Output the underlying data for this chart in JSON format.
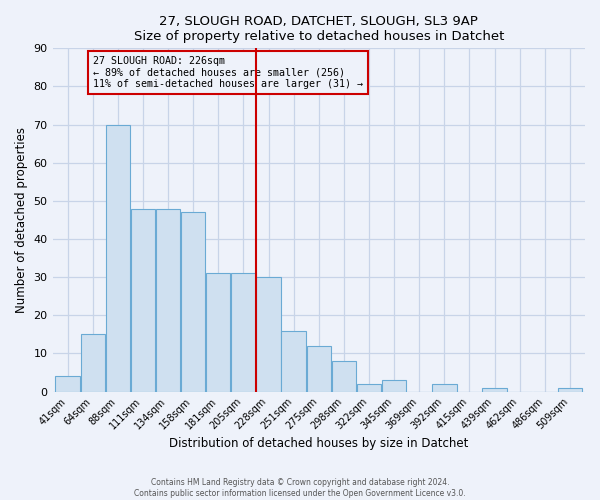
{
  "title1": "27, SLOUGH ROAD, DATCHET, SLOUGH, SL3 9AP",
  "title2": "Size of property relative to detached houses in Datchet",
  "xlabel": "Distribution of detached houses by size in Datchet",
  "ylabel": "Number of detached properties",
  "bar_labels": [
    "41sqm",
    "64sqm",
    "88sqm",
    "111sqm",
    "134sqm",
    "158sqm",
    "181sqm",
    "205sqm",
    "228sqm",
    "251sqm",
    "275sqm",
    "298sqm",
    "322sqm",
    "345sqm",
    "369sqm",
    "392sqm",
    "415sqm",
    "439sqm",
    "462sqm",
    "486sqm",
    "509sqm"
  ],
  "bar_values": [
    4,
    15,
    70,
    48,
    48,
    47,
    31,
    31,
    30,
    16,
    12,
    8,
    2,
    3,
    0,
    2,
    0,
    1,
    0,
    0,
    1
  ],
  "bar_color": "#cfe0f0",
  "bar_edge_color": "#6aaad4",
  "vline_color": "#cc0000",
  "annotation_title": "27 SLOUGH ROAD: 226sqm",
  "annotation_line1": "← 89% of detached houses are smaller (256)",
  "annotation_line2": "11% of semi-detached houses are larger (31) →",
  "annotation_box_color": "#cc0000",
  "ylim": [
    0,
    90
  ],
  "yticks": [
    0,
    10,
    20,
    30,
    40,
    50,
    60,
    70,
    80,
    90
  ],
  "footer1": "Contains HM Land Registry data © Crown copyright and database right 2024.",
  "footer2": "Contains public sector information licensed under the Open Government Licence v3.0.",
  "bg_color": "#eef2fa",
  "grid_color": "#c8d4e8"
}
